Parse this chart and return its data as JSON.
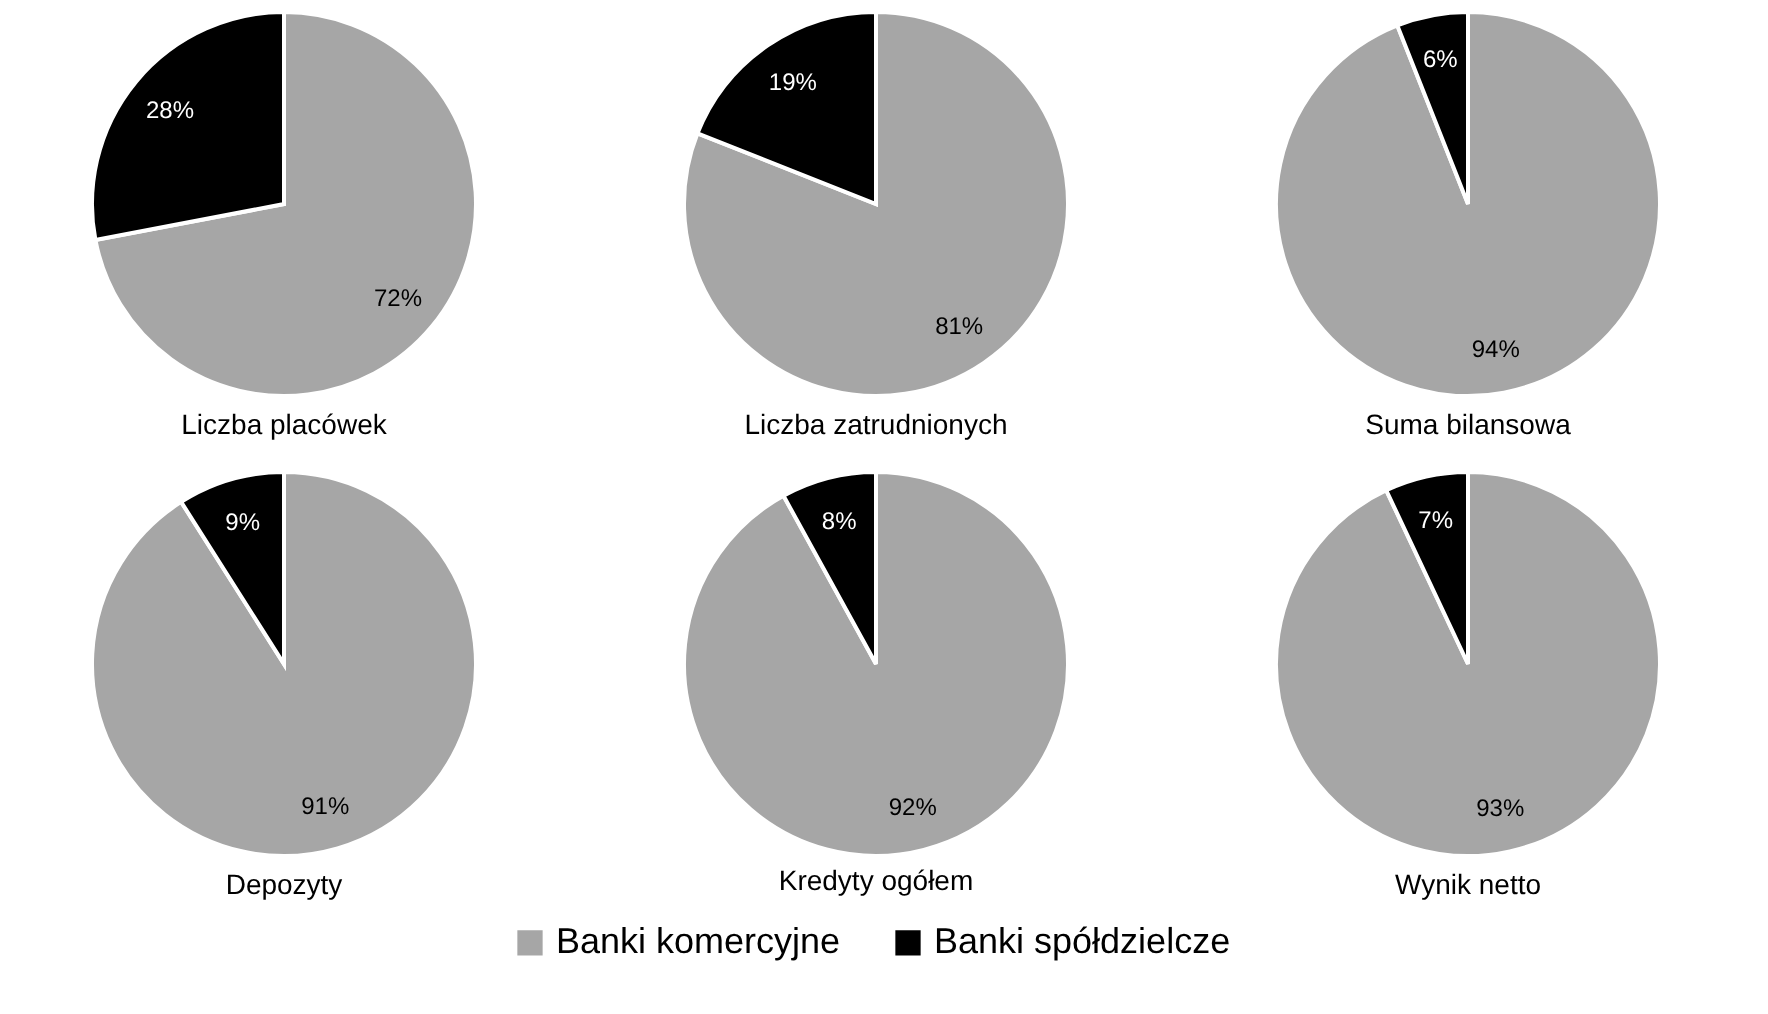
{
  "chart_data": [
    {
      "type": "pie",
      "title": "Liczba placówek",
      "categories": [
        null,
        null
      ],
      "values": [
        72,
        28
      ],
      "value_labels": [
        "72%",
        "28%"
      ],
      "colors": [
        "#a6a6a6",
        "#000000"
      ]
    },
    {
      "type": "pie",
      "title": "Liczba zatrudnionych",
      "categories": [
        null,
        null
      ],
      "values": [
        81,
        19
      ],
      "value_labels": [
        "81%",
        "19%"
      ],
      "colors": [
        "#a6a6a6",
        "#000000"
      ]
    },
    {
      "type": "pie",
      "title": "Suma bilansowa",
      "categories": [
        null,
        null
      ],
      "values": [
        94,
        6
      ],
      "value_labels": [
        "94%",
        "6%"
      ],
      "colors": [
        "#a6a6a6",
        "#000000"
      ]
    },
    {
      "type": "pie",
      "title": "Depozyty",
      "categories": [
        null,
        null
      ],
      "values": [
        91,
        9
      ],
      "value_labels": [
        "91%",
        "9%"
      ],
      "colors": [
        "#a6a6a6",
        "#000000"
      ]
    },
    {
      "type": "pie",
      "title": "Kredyty ogółem",
      "categories": [
        "Banki komercyjne",
        "Banki spółdzielcze"
      ],
      "values": [
        92,
        8
      ],
      "value_labels": [
        "92%",
        "8%"
      ],
      "colors": [
        "#a6a6a6",
        "#000000"
      ],
      "legend": "bottom"
    },
    {
      "type": "pie",
      "title": "Wynik netto",
      "categories": [
        null,
        null
      ],
      "values": [
        93,
        7
      ],
      "value_labels": [
        "93%",
        "7%"
      ],
      "colors": [
        "#a6a6a6",
        "#000000"
      ]
    }
  ]
}
